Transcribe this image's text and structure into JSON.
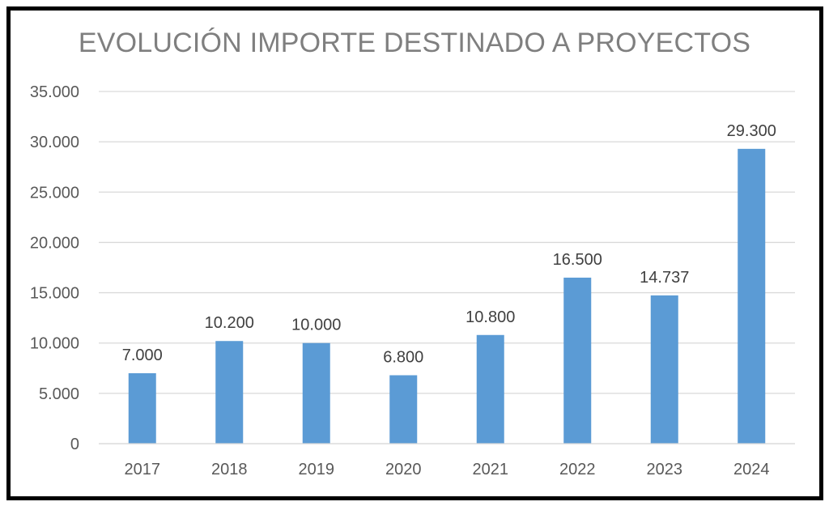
{
  "chart_data": {
    "type": "bar",
    "title": "EVOLUCIÓN IMPORTE DESTINADO A PROYECTOS",
    "categories": [
      "2017",
      "2018",
      "2019",
      "2020",
      "2021",
      "2022",
      "2023",
      "2024"
    ],
    "values": [
      7000,
      10200,
      10000,
      6800,
      10800,
      16500,
      14737,
      29300
    ],
    "data_labels": [
      "7.000",
      "10.200",
      "10.000",
      "6.800",
      "10.800",
      "16.500",
      "14.737",
      "29.300"
    ],
    "yticks": [
      0,
      5000,
      10000,
      15000,
      20000,
      25000,
      30000,
      35000
    ],
    "ytick_labels": [
      "0",
      "5.000",
      "10.000",
      "15.000",
      "20.000",
      "25.000",
      "30.000",
      "35.000"
    ],
    "ylim": [
      0,
      35000
    ],
    "xlabel": "",
    "ylabel": "",
    "grid": true,
    "bar_color": "#5b9bd5"
  }
}
